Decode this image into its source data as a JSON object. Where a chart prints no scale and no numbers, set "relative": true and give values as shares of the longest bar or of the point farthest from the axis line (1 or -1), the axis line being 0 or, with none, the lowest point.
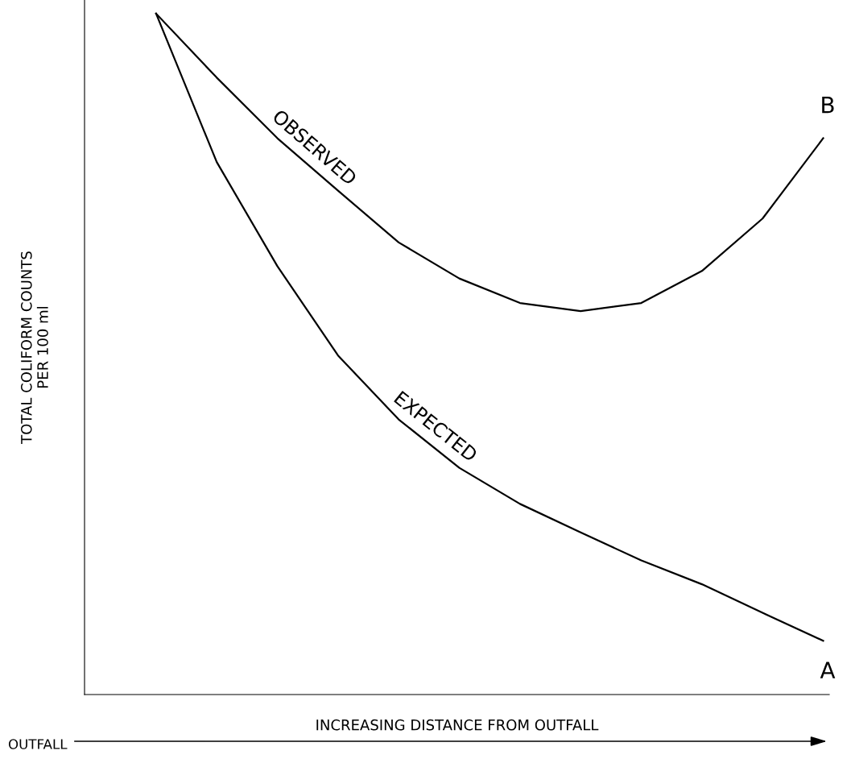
{
  "chart_data": {
    "type": "line",
    "relative": true,
    "xlabel": "INCREASING DISTANCE FROM OUTFALL",
    "ylabel": "TOTAL COLIFORM COUNTS\nPER 100 ml",
    "categories": [
      null,
      null,
      null,
      null,
      null,
      null,
      null,
      null,
      null,
      null,
      null,
      null
    ],
    "series": [
      {
        "name": "OBSERVED",
        "color": "#000000",
        "values": [
          1.0,
          0.906,
          0.817,
          0.74,
          0.664,
          0.611,
          0.575,
          0.563,
          0.575,
          0.622,
          0.699,
          0.817
        ]
      },
      {
        "name": "EXPECTED",
        "color": "#000000",
        "values": [
          1.0,
          0.782,
          0.629,
          0.498,
          0.404,
          0.333,
          0.28,
          0.238,
          0.197,
          0.162,
          0.12,
          0.079
        ]
      }
    ],
    "annotations": [
      "B",
      "A",
      "OUTFALL"
    ],
    "legend": false,
    "marker": "none",
    "line_style": "solid",
    "tick_labels": false
  }
}
